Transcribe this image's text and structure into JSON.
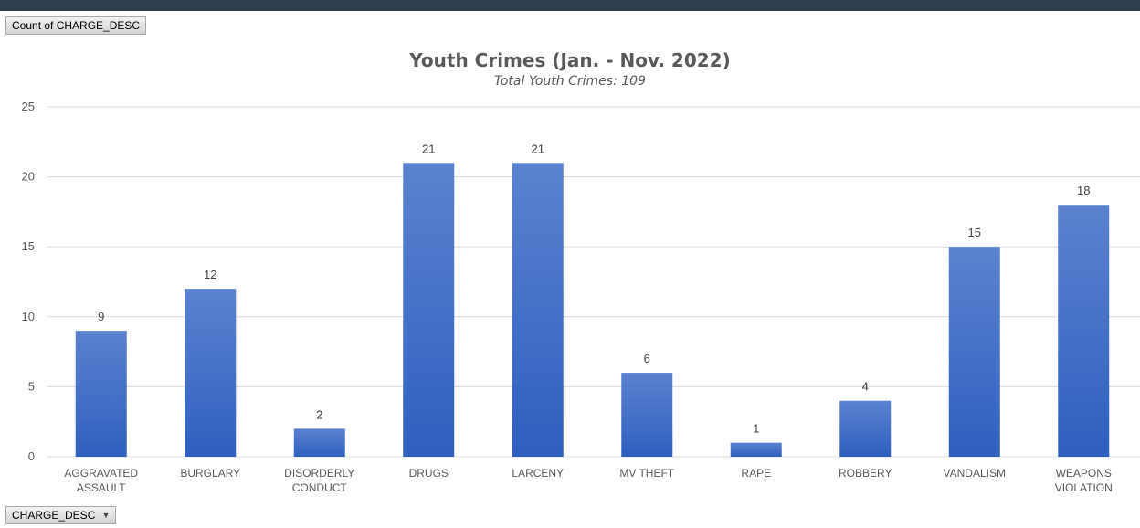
{
  "pivot": {
    "value_field": "Count of CHARGE_DESC",
    "axis_field": "CHARGE_DESC"
  },
  "chart_data": {
    "type": "bar",
    "title": "Youth Crimes (Jan. - Nov. 2022)",
    "subtitle": "Total Youth Crimes: 109",
    "categories": [
      [
        "AGGRAVATED",
        "ASSAULT"
      ],
      [
        "BURGLARY"
      ],
      [
        "DISORDERLY",
        "CONDUCT"
      ],
      [
        "DRUGS"
      ],
      [
        "LARCENY"
      ],
      [
        "MV THEFT"
      ],
      [
        "RAPE"
      ],
      [
        "ROBBERY"
      ],
      [
        "VANDALISM"
      ],
      [
        "WEAPONS",
        "VIOLATION"
      ]
    ],
    "values": [
      9,
      12,
      2,
      21,
      21,
      6,
      1,
      4,
      15,
      18
    ],
    "ylim": [
      0,
      25
    ],
    "yticks": [
      0,
      5,
      10,
      15,
      20,
      25
    ],
    "grid": true,
    "legend": "none",
    "bar_color_top": "#5b82cf",
    "bar_color_bottom": "#2e5fbf",
    "grid_color": "#d9d9d9"
  }
}
